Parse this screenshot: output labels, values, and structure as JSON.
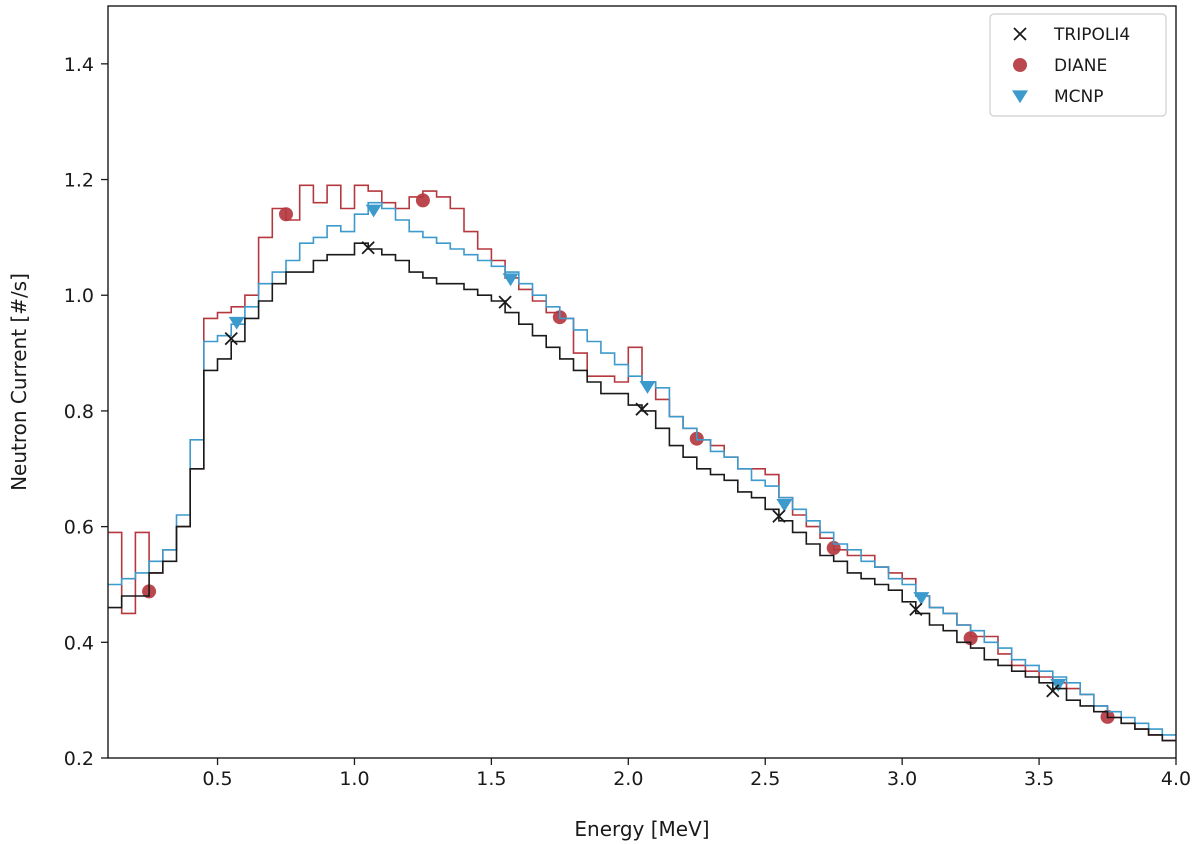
{
  "chart_data": {
    "type": "line",
    "title": "",
    "xlabel": "Energy [MeV]",
    "ylabel": "Neutron Current [#/s]",
    "xlim": [
      0.1,
      4.0
    ],
    "ylim": [
      0.2,
      1.5
    ],
    "xticks": [
      0.5,
      1.0,
      1.5,
      2.0,
      2.5,
      3.0,
      3.5,
      4.0
    ],
    "xtick_labels": [
      "0.5",
      "1.0",
      "1.5",
      "2.0",
      "2.5",
      "3.0",
      "3.5",
      "4.0"
    ],
    "yticks": [
      0.2,
      0.4,
      0.6,
      0.8,
      1.0,
      1.2,
      1.4
    ],
    "ytick_labels": [
      "0.2",
      "0.4",
      "0.6",
      "0.8",
      "1.0",
      "1.2",
      "1.4"
    ],
    "grid": false,
    "legend_position": "top-right",
    "step": "post",
    "bin_edges": [
      0.1,
      0.15,
      0.2,
      0.25,
      0.3,
      0.35,
      0.4,
      0.45,
      0.5,
      0.55,
      0.6,
      0.65,
      0.7,
      0.75,
      0.8,
      0.85,
      0.9,
      0.95,
      1.0,
      1.05,
      1.1,
      1.15,
      1.2,
      1.25,
      1.3,
      1.35,
      1.4,
      1.45,
      1.5,
      1.55,
      1.6,
      1.65,
      1.7,
      1.75,
      1.8,
      1.85,
      1.9,
      1.95,
      2.0,
      2.05,
      2.1,
      2.15,
      2.2,
      2.25,
      2.3,
      2.35,
      2.4,
      2.45,
      2.5,
      2.55,
      2.6,
      2.65,
      2.7,
      2.75,
      2.8,
      2.85,
      2.9,
      2.95,
      3.0,
      3.05,
      3.1,
      3.15,
      3.2,
      3.25,
      3.3,
      3.35,
      3.4,
      3.45,
      3.5,
      3.55,
      3.6,
      3.65,
      3.7,
      3.75,
      3.8,
      3.85,
      3.9,
      3.95,
      4.0
    ],
    "series": [
      {
        "name": "TRIPOLI4",
        "color": "#1a1a1a",
        "marker": "x",
        "values": [
          0.46,
          0.48,
          0.48,
          0.52,
          0.54,
          0.6,
          0.7,
          0.87,
          0.89,
          0.92,
          0.96,
          0.99,
          1.02,
          1.04,
          1.04,
          1.06,
          1.07,
          1.07,
          1.09,
          1.08,
          1.07,
          1.06,
          1.04,
          1.03,
          1.02,
          1.02,
          1.01,
          1.0,
          0.99,
          0.97,
          0.95,
          0.93,
          0.91,
          0.89,
          0.87,
          0.85,
          0.83,
          0.83,
          0.81,
          0.8,
          0.77,
          0.74,
          0.72,
          0.7,
          0.69,
          0.68,
          0.66,
          0.65,
          0.63,
          0.61,
          0.59,
          0.57,
          0.55,
          0.54,
          0.52,
          0.51,
          0.5,
          0.49,
          0.47,
          0.45,
          0.43,
          0.42,
          0.4,
          0.39,
          0.37,
          0.36,
          0.35,
          0.34,
          0.33,
          0.32,
          0.3,
          0.29,
          0.28,
          0.27,
          0.26,
          0.25,
          0.24,
          0.23
        ],
        "marker_points": [
          [
            0.55,
            0.925
          ],
          [
            1.05,
            1.082
          ],
          [
            1.55,
            0.988
          ],
          [
            2.05,
            0.803
          ],
          [
            2.55,
            0.618
          ],
          [
            3.05,
            0.457
          ],
          [
            3.55,
            0.316
          ]
        ]
      },
      {
        "name": "DIANE",
        "color": "#b5383f",
        "marker": "o",
        "values": [
          0.59,
          0.45,
          0.59,
          0.52,
          0.56,
          0.6,
          0.7,
          0.96,
          0.97,
          0.98,
          1.0,
          1.1,
          1.15,
          1.13,
          1.19,
          1.16,
          1.19,
          1.15,
          1.19,
          1.18,
          1.16,
          1.15,
          1.17,
          1.18,
          1.17,
          1.15,
          1.11,
          1.08,
          1.06,
          1.03,
          1.01,
          0.99,
          0.97,
          0.96,
          0.9,
          0.86,
          0.86,
          0.85,
          0.91,
          0.85,
          0.82,
          0.79,
          0.77,
          0.75,
          0.74,
          0.72,
          0.7,
          0.7,
          0.69,
          0.65,
          0.62,
          0.6,
          0.58,
          0.56,
          0.55,
          0.55,
          0.53,
          0.52,
          0.51,
          0.48,
          0.46,
          0.45,
          0.43,
          0.41,
          0.41,
          0.38,
          0.36,
          0.35,
          0.34,
          0.33,
          0.32,
          0.31,
          0.29,
          0.27,
          0.26,
          0.25,
          0.24,
          0.23
        ],
        "marker_points": [
          [
            0.25,
            0.488
          ],
          [
            0.75,
            1.14
          ],
          [
            1.25,
            1.164
          ],
          [
            1.75,
            0.962
          ],
          [
            2.25,
            0.752
          ],
          [
            2.75,
            0.563
          ],
          [
            3.25,
            0.407
          ],
          [
            3.75,
            0.271
          ]
        ]
      },
      {
        "name": "MCNP",
        "color": "#3d9acc",
        "marker": "v",
        "values": [
          0.5,
          0.51,
          0.52,
          0.54,
          0.56,
          0.62,
          0.75,
          0.92,
          0.93,
          0.95,
          0.98,
          1.02,
          1.04,
          1.06,
          1.09,
          1.1,
          1.12,
          1.11,
          1.14,
          1.16,
          1.15,
          1.13,
          1.11,
          1.1,
          1.09,
          1.08,
          1.07,
          1.06,
          1.05,
          1.04,
          1.02,
          1.0,
          0.98,
          0.96,
          0.94,
          0.92,
          0.9,
          0.88,
          0.86,
          0.85,
          0.84,
          0.79,
          0.77,
          0.75,
          0.73,
          0.72,
          0.7,
          0.68,
          0.67,
          0.65,
          0.63,
          0.61,
          0.59,
          0.57,
          0.56,
          0.54,
          0.53,
          0.51,
          0.5,
          0.48,
          0.46,
          0.45,
          0.43,
          0.42,
          0.4,
          0.39,
          0.37,
          0.36,
          0.35,
          0.34,
          0.33,
          0.31,
          0.29,
          0.28,
          0.27,
          0.26,
          0.25,
          0.24
        ],
        "marker_points": [
          [
            0.57,
            0.953
          ],
          [
            1.07,
            1.147
          ],
          [
            1.57,
            1.028
          ],
          [
            2.07,
            0.842
          ],
          [
            2.57,
            0.638
          ],
          [
            3.07,
            0.477
          ],
          [
            3.57,
            0.327
          ]
        ]
      }
    ]
  }
}
